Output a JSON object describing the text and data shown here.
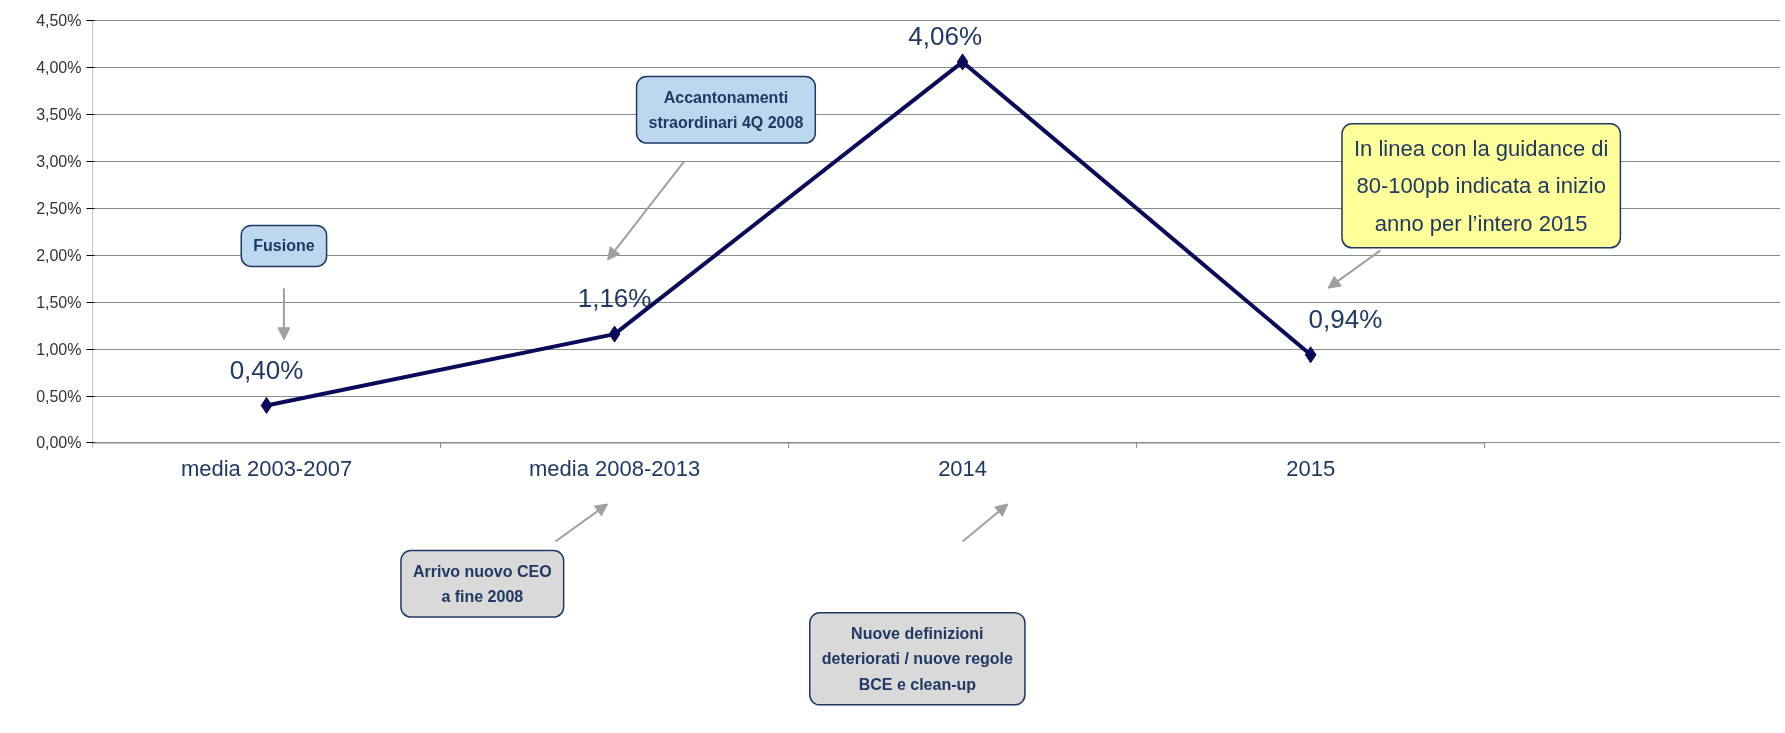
{
  "chart_data": {
    "type": "line",
    "categories": [
      "media 2003-2007",
      "media 2008-2013",
      "2014",
      "2015"
    ],
    "series": [
      {
        "color": "#0a0a5c",
        "values": [
          0.4,
          1.16,
          4.06,
          0.94
        ],
        "value_labels": [
          "0,40%",
          "1,16%",
          "4,06%",
          "0,94%"
        ]
      }
    ],
    "ylim": [
      0,
      4.5
    ],
    "yticks": [
      {
        "value": 0,
        "label": "0,00%"
      },
      {
        "value": 0.5,
        "label": "0,50%"
      },
      {
        "value": 1,
        "label": "1,00%"
      },
      {
        "value": 1.5,
        "label": "1,50%"
      },
      {
        "value": 2,
        "label": "2,00%"
      },
      {
        "value": 2.5,
        "label": "2,50%"
      },
      {
        "value": 3,
        "label": "3,00%"
      },
      {
        "value": 3.5,
        "label": "3,50%"
      },
      {
        "value": 4,
        "label": "4,00%"
      },
      {
        "value": 4.5,
        "label": "4,50%"
      }
    ],
    "grid": "y",
    "marker": "diamond",
    "line_style": "solid",
    "annotations": [
      "Fusione",
      "Accantonamenti\nstraordinari 4Q 2008",
      "In linea con la guidance di\n80-100pb indicata a inizio\nanno per l’intero 2015",
      "Arrivo nuovo CEO\na fine 2008",
      "Nuove definizioni\ndeteriorati / nuove regole\nBCE e clean-up"
    ]
  }
}
